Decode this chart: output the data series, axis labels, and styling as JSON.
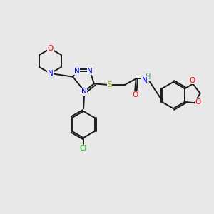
{
  "bg_color": "#e8e8e8",
  "bond_color": "#1a1a1a",
  "colors": {
    "N": "#0000ee",
    "O": "#ee0000",
    "S": "#aaaa00",
    "Cl": "#00bb00",
    "C": "#1a1a1a",
    "H": "#338888"
  },
  "font_size": 7.5,
  "lw": 1.4
}
